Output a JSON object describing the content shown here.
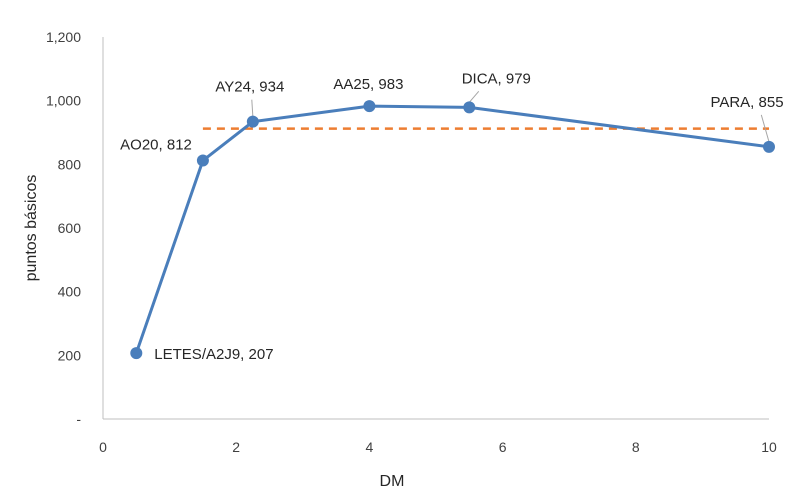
{
  "chart_data": {
    "type": "scatter",
    "title": "",
    "xlabel": "DM",
    "ylabel": "puntos básicos",
    "xlim": [
      0,
      10
    ],
    "ylim": [
      0,
      1200
    ],
    "x_ticks": [
      0,
      2,
      4,
      6,
      8,
      10
    ],
    "x_tick_labels": [
      "0",
      "2",
      "4",
      "6",
      "8",
      "10"
    ],
    "y_ticks": [
      0,
      200,
      400,
      600,
      800,
      1000,
      1200
    ],
    "y_tick_labels": [
      "-",
      "200",
      "400",
      "600",
      "800",
      "1,000",
      "1,200"
    ],
    "grid": false,
    "legend": "none",
    "series": [
      {
        "type": "line",
        "color": "#4a7ebb",
        "marker": "circle",
        "points": [
          {
            "x": 0.5,
            "y": 207,
            "label": "LETES/A2J9, 207"
          },
          {
            "x": 1.5,
            "y": 812,
            "label": "AO20, 812"
          },
          {
            "x": 2.25,
            "y": 934,
            "label": "AY24, 934"
          },
          {
            "x": 4.0,
            "y": 983,
            "label": "AA25, 983"
          },
          {
            "x": 5.5,
            "y": 979,
            "label": "DICA, 979"
          },
          {
            "x": 10.0,
            "y": 855,
            "label": "PARA, 855"
          }
        ]
      },
      {
        "type": "line",
        "style": "dashed",
        "color": "#ed7d31",
        "points": [
          {
            "x": 1.5,
            "y": 912
          },
          {
            "x": 10.0,
            "y": 912
          }
        ]
      }
    ]
  }
}
